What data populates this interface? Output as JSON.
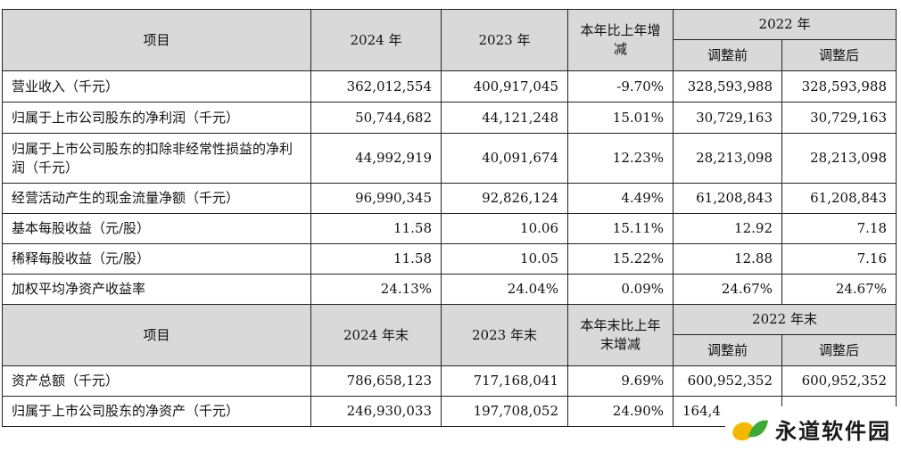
{
  "table1": {
    "header": {
      "item": "项目",
      "y2024": "2024 年",
      "y2023": "2023 年",
      "change": "本年比上年增减",
      "y2022": "2022 年",
      "before": "调整前",
      "after": "调整后"
    },
    "rows": [
      {
        "label": "营业收入（千元）",
        "v2024": "362,012,554",
        "v2023": "400,917,045",
        "change": "-9.70%",
        "before": "328,593,988",
        "after": "328,593,988"
      },
      {
        "label": "归属于上市公司股东的净利润（千元）",
        "v2024": "50,744,682",
        "v2023": "44,121,248",
        "change": "15.01%",
        "before": "30,729,163",
        "after": "30,729,163"
      },
      {
        "label": "归属于上市公司股东的扣除非经常性损益的净利润（千元）",
        "v2024": "44,992,919",
        "v2023": "40,091,674",
        "change": "12.23%",
        "before": "28,213,098",
        "after": "28,213,098"
      },
      {
        "label": "经营活动产生的现金流量净额（千元）",
        "v2024": "96,990,345",
        "v2023": "92,826,124",
        "change": "4.49%",
        "before": "61,208,843",
        "after": "61,208,843"
      },
      {
        "label": "基本每股收益（元/股）",
        "v2024": "11.58",
        "v2023": "10.06",
        "change": "15.11%",
        "before": "12.92",
        "after": "7.18"
      },
      {
        "label": "稀释每股收益（元/股）",
        "v2024": "11.58",
        "v2023": "10.05",
        "change": "15.22%",
        "before": "12.88",
        "after": "7.16"
      },
      {
        "label": "加权平均净资产收益率",
        "v2024": "24.13%",
        "v2023": "24.04%",
        "change": "0.09%",
        "before": "24.67%",
        "after": "24.67%"
      }
    ]
  },
  "table2": {
    "header": {
      "item": "项目",
      "y2024": "2024 年末",
      "y2023": "2023 年末",
      "change": "本年末比上年末增减",
      "y2022": "2022 年末",
      "before": "调整前",
      "after": "调整后"
    },
    "rows": [
      {
        "label": "资产总额（千元）",
        "v2024": "786,658,123",
        "v2023": "717,168,041",
        "change": "9.69%",
        "before": "600,952,352",
        "after": "600,952,352"
      },
      {
        "label": "归属于上市公司股东的净资产（千元）",
        "v2024": "246,930,033",
        "v2023": "197,708,052",
        "change": "24.90%",
        "before": "164,4",
        "after": ""
      }
    ]
  },
  "watermark": {
    "text": "永道软件园"
  },
  "colors": {
    "header_bg": "#d9d9d9",
    "border": "#222222",
    "logo_yellow": "#f5b800",
    "logo_green": "#3aa935"
  }
}
